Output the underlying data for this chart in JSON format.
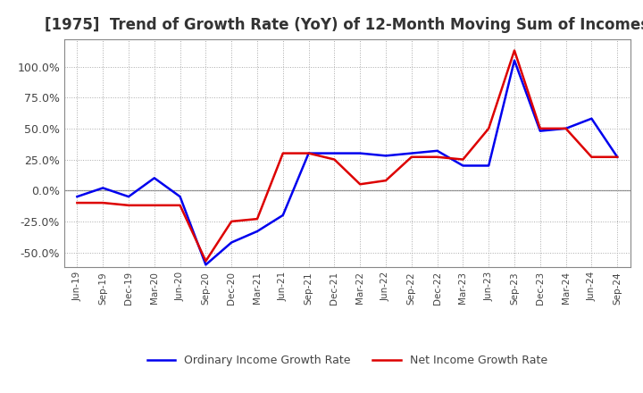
{
  "title": "[1975]  Trend of Growth Rate (YoY) of 12-Month Moving Sum of Incomes",
  "title_fontsize": 12,
  "title_color": "#333333",
  "legend_labels": [
    "Ordinary Income Growth Rate",
    "Net Income Growth Rate"
  ],
  "line_colors": [
    "#0000EE",
    "#DD0000"
  ],
  "ylim": [
    -0.62,
    1.22
  ],
  "yticks": [
    -0.5,
    -0.25,
    0.0,
    0.25,
    0.5,
    0.75,
    1.0
  ],
  "background_color": "#ffffff",
  "grid_color": "#aaaaaa",
  "x_labels": [
    "Jun-19",
    "Sep-19",
    "Dec-19",
    "Mar-20",
    "Jun-20",
    "Sep-20",
    "Dec-20",
    "Mar-21",
    "Jun-21",
    "Sep-21",
    "Dec-21",
    "Mar-22",
    "Jun-22",
    "Sep-22",
    "Dec-22",
    "Mar-23",
    "Jun-23",
    "Sep-23",
    "Dec-23",
    "Mar-24",
    "Jun-24",
    "Sep-24"
  ],
  "ordinary_income": [
    -0.05,
    0.02,
    -0.05,
    0.1,
    -0.05,
    -0.6,
    -0.42,
    -0.33,
    -0.2,
    0.3,
    0.3,
    0.3,
    0.28,
    0.3,
    0.32,
    0.2,
    0.2,
    1.05,
    0.48,
    0.5,
    0.58,
    0.27
  ],
  "net_income": [
    -0.1,
    -0.1,
    -0.12,
    -0.12,
    -0.12,
    -0.57,
    -0.25,
    -0.23,
    0.3,
    0.3,
    0.25,
    0.05,
    0.08,
    0.27,
    0.27,
    0.25,
    0.5,
    1.13,
    0.5,
    0.5,
    0.27,
    0.27
  ]
}
